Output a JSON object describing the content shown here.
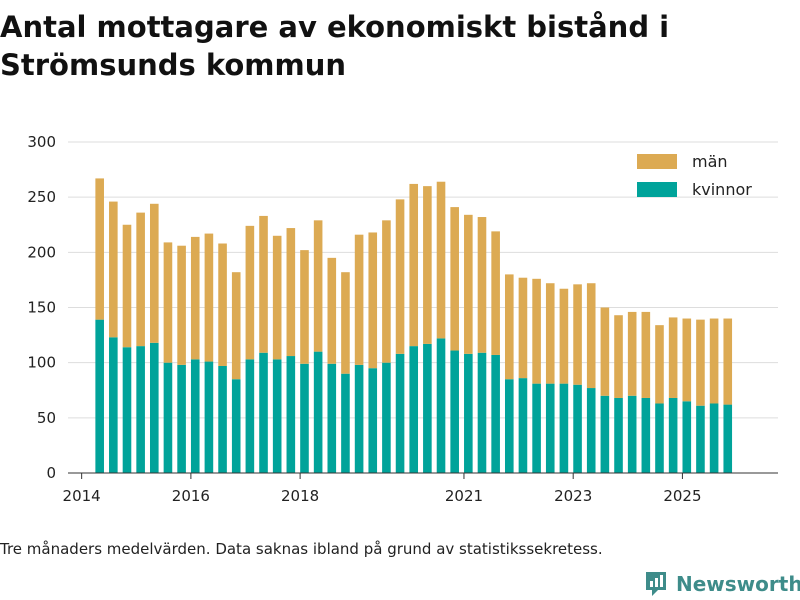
{
  "title": "Antal mottagare av ekonomiskt bistånd i Strömsunds kommun",
  "footnote": "Tre månaders medelvärden. Data saknas ibland på grund av statistikssekretess.",
  "brand": "Newsworthy",
  "colors": {
    "kvinnor": "#00a39a",
    "man": "#dcaa53",
    "grid": "#dddddd",
    "axis": "#333333"
  },
  "chart_data": {
    "type": "bar",
    "stacked": true,
    "title": "Antal mottagare av ekonomiskt bistånd i Strömsunds kommun",
    "xlabel": "",
    "ylabel": "",
    "ylim": [
      0,
      300
    ],
    "xlim": [
      2013.75,
      2026.75
    ],
    "y_ticks": [
      0,
      50,
      100,
      150,
      200,
      250,
      300
    ],
    "x_ticks": [
      {
        "value": 2014.0,
        "label": "2014"
      },
      {
        "value": 2016.0,
        "label": "2016"
      },
      {
        "value": 2018.0,
        "label": "2018"
      },
      {
        "value": 2021.0,
        "label": "2021"
      },
      {
        "value": 2023.0,
        "label": "2023"
      },
      {
        "value": 2025.0,
        "label": "2025"
      }
    ],
    "legend": [
      {
        "name": "män",
        "color": "#dcaa53"
      },
      {
        "name": "kvinnor",
        "color": "#00a39a"
      }
    ],
    "x": [
      2014.33,
      2014.58,
      2014.83,
      2015.08,
      2015.33,
      2015.58,
      2015.83,
      2016.08,
      2016.33,
      2016.58,
      2016.83,
      2017.08,
      2017.33,
      2017.58,
      2017.83,
      2018.08,
      2018.33,
      2018.58,
      2018.83,
      2019.08,
      2019.33,
      2019.58,
      2019.83,
      2020.08,
      2020.33,
      2020.58,
      2020.83,
      2021.08,
      2021.33,
      2021.58,
      2021.83,
      2022.08,
      2022.33,
      2022.58,
      2022.83,
      2023.08,
      2023.33,
      2023.58,
      2023.83,
      2024.08,
      2024.33,
      2024.58,
      2024.83,
      2025.08,
      2025.33,
      2025.58,
      2025.83
    ],
    "series": [
      {
        "name": "kvinnor",
        "values": [
          139,
          123,
          114,
          115,
          118,
          100,
          98,
          103,
          101,
          97,
          85,
          103,
          109,
          103,
          106,
          99,
          110,
          99,
          90,
          98,
          95,
          100,
          108,
          115,
          117,
          122,
          111,
          108,
          109,
          107,
          85,
          86,
          81,
          81,
          81,
          80,
          77,
          70,
          68,
          70,
          68,
          63,
          68,
          65,
          61,
          63,
          62
        ]
      },
      {
        "name": "män",
        "values": [
          128,
          123,
          111,
          121,
          126,
          109,
          108,
          111,
          116,
          111,
          97,
          121,
          124,
          112,
          116,
          103,
          119,
          96,
          92,
          118,
          123,
          129,
          140,
          147,
          143,
          142,
          130,
          126,
          123,
          112,
          95,
          91,
          95,
          91,
          86,
          91,
          95,
          80,
          75,
          76,
          78,
          71,
          73,
          75,
          78,
          77,
          78
        ]
      }
    ]
  }
}
